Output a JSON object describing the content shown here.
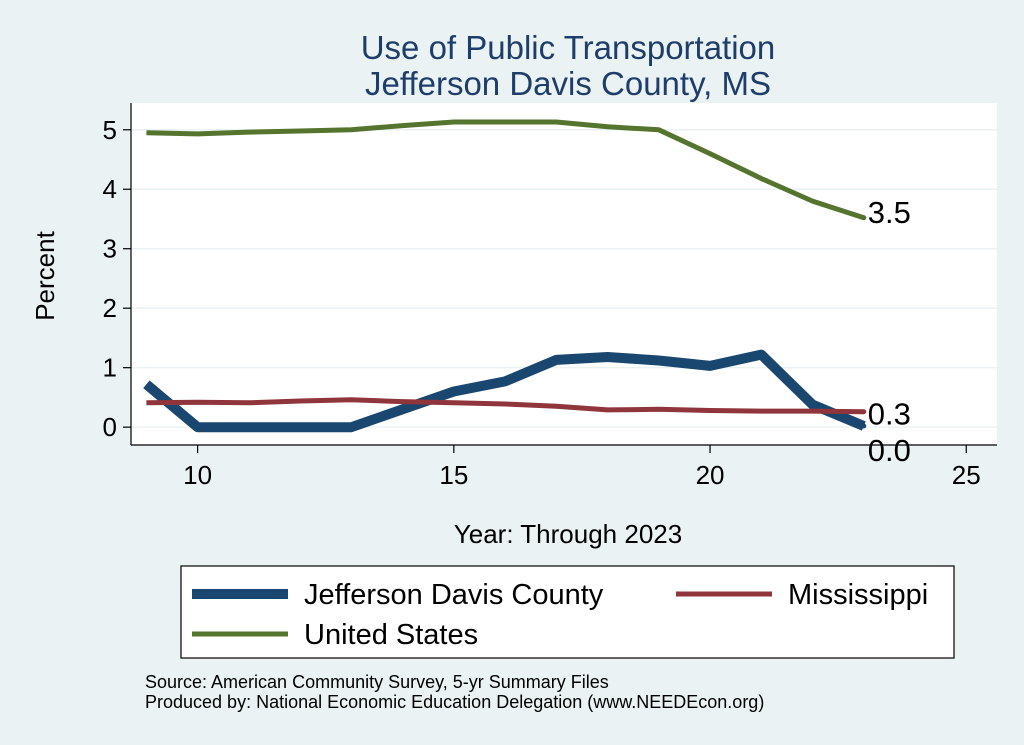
{
  "chart_data": {
    "type": "line",
    "title": [
      "Use of Public Transportation",
      "Jefferson Davis County, MS"
    ],
    "xlabel": "Year: Through 2023",
    "ylabel": "Percent",
    "xlim": [
      8.7,
      25.6
    ],
    "ylim": [
      -0.3,
      5.45
    ],
    "xticks": [
      10,
      15,
      20,
      25
    ],
    "yticks": [
      0,
      1,
      2,
      3,
      4,
      5
    ],
    "grid": true,
    "legend_position": "bottom",
    "series": [
      {
        "name": "Jefferson Davis County",
        "color": "#1a476f",
        "width": 10,
        "x": [
          9,
          10,
          11,
          12,
          13,
          14,
          15,
          16,
          17,
          18,
          19,
          20,
          21,
          22,
          23
        ],
        "y": [
          0.72,
          0.0,
          0.0,
          0.0,
          0.0,
          0.3,
          0.6,
          0.77,
          1.13,
          1.18,
          1.12,
          1.03,
          1.22,
          0.38,
          0.02
        ],
        "end_label": "0.0"
      },
      {
        "name": "Mississippi",
        "color": "#90353b",
        "width": 5,
        "x": [
          9,
          10,
          11,
          12,
          13,
          14,
          15,
          16,
          17,
          18,
          19,
          20,
          21,
          22,
          23
        ],
        "y": [
          0.41,
          0.42,
          0.41,
          0.44,
          0.46,
          0.43,
          0.41,
          0.39,
          0.35,
          0.29,
          0.3,
          0.28,
          0.27,
          0.27,
          0.26
        ],
        "end_label": "0.3"
      },
      {
        "name": "United States",
        "color": "#55752f",
        "width": 5,
        "x": [
          9,
          10,
          11,
          12,
          13,
          14,
          15,
          16,
          17,
          18,
          19,
          20,
          21,
          22,
          23
        ],
        "y": [
          4.95,
          4.93,
          4.96,
          4.98,
          5.0,
          5.07,
          5.13,
          5.13,
          5.13,
          5.05,
          5.0,
          4.6,
          4.18,
          3.8,
          3.52
        ],
        "end_label": "3.5"
      }
    ]
  },
  "footer": {
    "source": "Source: American Community Survey, 5-yr Summary Files",
    "producer": "Produced by: National Economic Education Delegation (www.NEEDEcon.org)"
  }
}
